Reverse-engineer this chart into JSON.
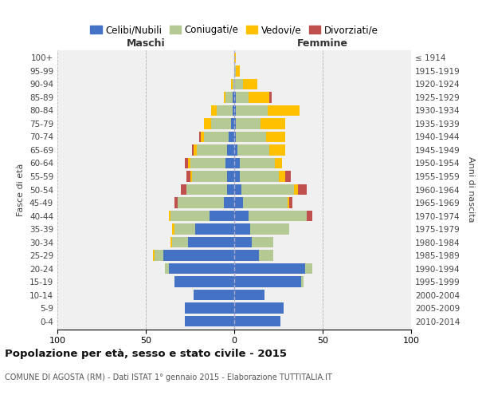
{
  "age_groups": [
    "100+",
    "95-99",
    "90-94",
    "85-89",
    "80-84",
    "75-79",
    "70-74",
    "65-69",
    "60-64",
    "55-59",
    "50-54",
    "45-49",
    "40-44",
    "35-39",
    "30-34",
    "25-29",
    "20-24",
    "15-19",
    "10-14",
    "5-9",
    "0-4"
  ],
  "birth_years": [
    "≤ 1914",
    "1915-1919",
    "1920-1924",
    "1925-1929",
    "1930-1934",
    "1935-1939",
    "1940-1944",
    "1945-1949",
    "1950-1954",
    "1955-1959",
    "1960-1964",
    "1965-1969",
    "1970-1974",
    "1975-1979",
    "1980-1984",
    "1985-1989",
    "1990-1994",
    "1995-1999",
    "2000-2004",
    "2005-2009",
    "2010-2014"
  ],
  "colors": {
    "celibi": "#4472c4",
    "coniugati": "#b5c994",
    "vedovi": "#ffc000",
    "divorziati": "#c0504d",
    "background": "#f0f0f0",
    "grid": "#cccccc"
  },
  "maschi": {
    "celibi": [
      0,
      0,
      0,
      1,
      1,
      2,
      3,
      4,
      5,
      4,
      4,
      6,
      14,
      22,
      26,
      40,
      37,
      34,
      23,
      28,
      28
    ],
    "coniugati": [
      0,
      0,
      1,
      4,
      9,
      11,
      14,
      17,
      20,
      20,
      23,
      26,
      22,
      12,
      9,
      5,
      2,
      0,
      0,
      0,
      0
    ],
    "vedovi": [
      0,
      0,
      1,
      1,
      3,
      4,
      2,
      2,
      1,
      1,
      0,
      0,
      1,
      1,
      1,
      1,
      0,
      0,
      0,
      0,
      0
    ],
    "divorziati": [
      0,
      0,
      0,
      0,
      0,
      0,
      1,
      1,
      2,
      2,
      3,
      2,
      0,
      0,
      0,
      0,
      0,
      0,
      0,
      0,
      0
    ]
  },
  "femmine": {
    "celibi": [
      0,
      0,
      0,
      1,
      1,
      1,
      1,
      2,
      3,
      3,
      4,
      5,
      8,
      9,
      10,
      14,
      40,
      38,
      17,
      28,
      26
    ],
    "coniugati": [
      0,
      1,
      5,
      7,
      18,
      14,
      17,
      18,
      20,
      22,
      30,
      25,
      33,
      22,
      12,
      8,
      4,
      1,
      0,
      0,
      0
    ],
    "vedovi": [
      1,
      2,
      8,
      12,
      18,
      14,
      11,
      9,
      4,
      4,
      2,
      1,
      0,
      0,
      0,
      0,
      0,
      0,
      0,
      0,
      0
    ],
    "divorziati": [
      0,
      0,
      0,
      1,
      0,
      0,
      0,
      0,
      0,
      3,
      5,
      2,
      3,
      0,
      0,
      0,
      0,
      0,
      0,
      0,
      0
    ]
  },
  "title": "Popolazione per età, sesso e stato civile - 2015",
  "subtitle": "COMUNE DI AGOSTA (RM) - Dati ISTAT 1° gennaio 2015 - Elaborazione TUTTITALIA.IT",
  "xlabel_left": "Maschi",
  "xlabel_right": "Femmine",
  "ylabel_left": "Fasce di età",
  "ylabel_right": "Anni di nascita",
  "xlim": 100,
  "legend_labels": [
    "Celibi/Nubili",
    "Coniugati/e",
    "Vedovi/e",
    "Divorziati/e"
  ]
}
